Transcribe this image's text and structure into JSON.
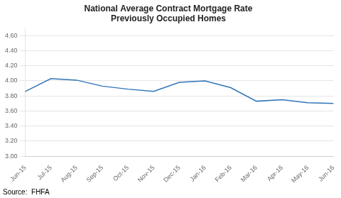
{
  "chart_data": {
    "type": "line",
    "title": "National Average Contract Mortgage Rate\nPreviously Occupied Homes",
    "categories": [
      "Jun-15",
      "Jul-15",
      "Aug-15",
      "Sep-15",
      "Oct-15",
      "Nov-15",
      "Dec-15",
      "Jan-16",
      "Feb-16",
      "Mar-16",
      "Apr-16",
      "May-16",
      "Jun-16"
    ],
    "values": [
      3.86,
      4.03,
      4.01,
      3.93,
      3.89,
      3.86,
      3.98,
      4.0,
      3.91,
      3.73,
      3.75,
      3.71,
      3.7
    ],
    "color": "#2E75B6",
    "ylim": [
      3.0,
      4.7
    ],
    "yticks": [
      {
        "value": 3.0,
        "label": "3.00"
      },
      {
        "value": 3.2,
        "label": "3.20"
      },
      {
        "value": 3.4,
        "label": "3.40"
      },
      {
        "value": 3.6,
        "label": "3.60"
      },
      {
        "value": 3.8,
        "label": "3.80"
      },
      {
        "value": 4.0,
        "label": "4.00"
      },
      {
        "value": 4.2,
        "label": "4.20"
      },
      {
        "value": 4.4,
        "label": "4.40"
      },
      {
        "value": 4.6,
        "label": "4.60"
      }
    ],
    "grid": true,
    "annotations": [
      "Source:  FHFA"
    ]
  }
}
